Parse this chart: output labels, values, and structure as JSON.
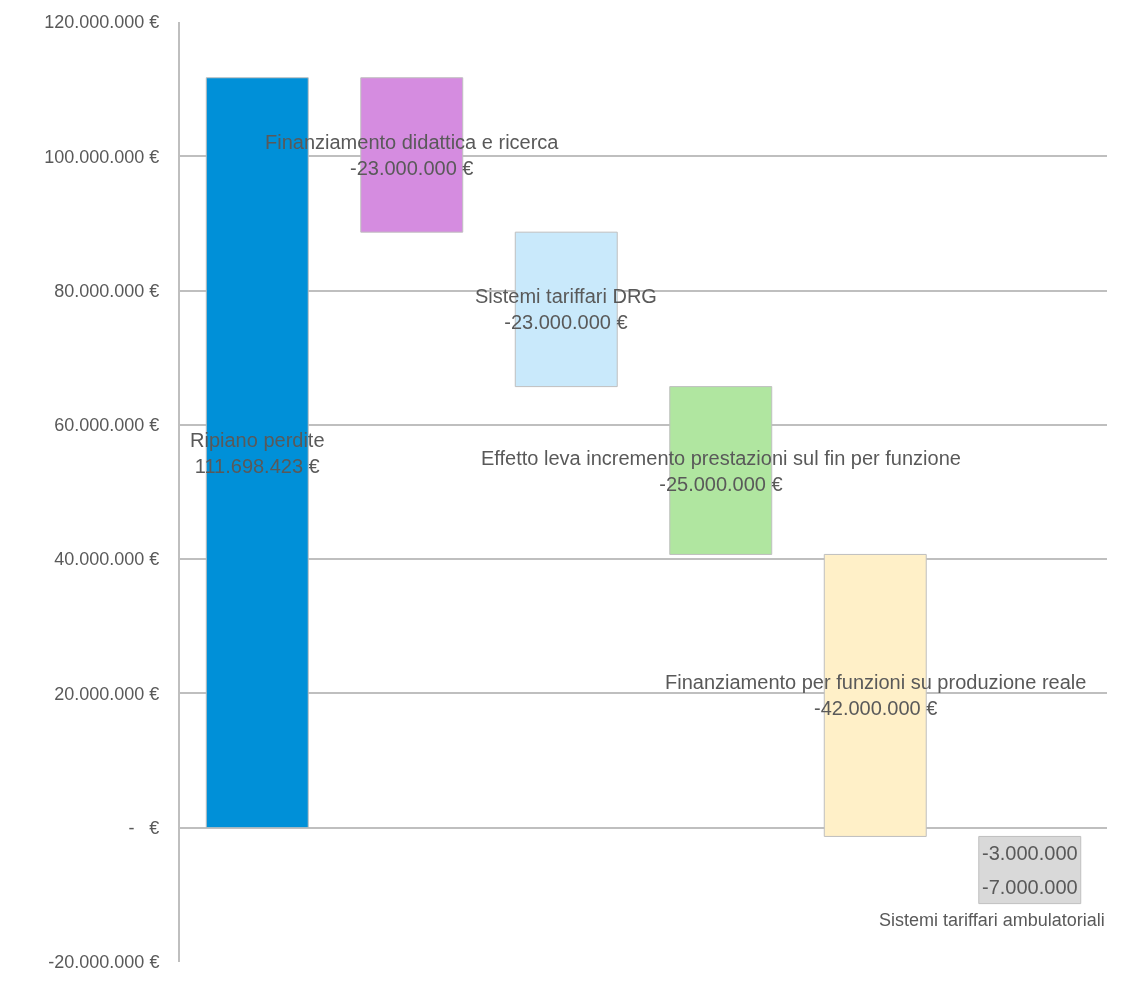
{
  "chart_data": {
    "type": "bar",
    "categories": [
      "Ripiano perdite",
      "Finanziamento didattica e ricerca",
      "Sistemi tariffari DRG",
      "Effetto leva incremento prestazioni sul fin per funzione",
      "Finanziamento per funzioni su produzione reale",
      "Sistemi tariffari ambulatoriali"
    ],
    "values": [
      111698423,
      -23000000,
      -23000000,
      -25000000,
      -42000000,
      -10000000
    ],
    "base": [
      0,
      111698423,
      88698423,
      65698423,
      40698423,
      -1301577
    ],
    "colors": [
      "#0090d8",
      "#d58ce0",
      "#c9e9fb",
      "#b0e6a0",
      "#fff0c8",
      "#d9d9d9"
    ],
    "value_labels": [
      "111.698.423 €",
      "-23.000.000 €",
      "-23.000.000 €",
      "-25.000.000 €",
      "-42.000.000 €",
      null
    ],
    "annotations": [
      "-3.000.000",
      "-7.000.000"
    ],
    "ylim": [
      -20000000,
      120000000
    ],
    "yticks": [
      {
        "value": -20000000,
        "label": "-20.000.000 €"
      },
      {
        "value": 0,
        "label": "-   €"
      },
      {
        "value": 20000000,
        "label": "20.000.000 €"
      },
      {
        "value": 40000000,
        "label": "40.000.000 €"
      },
      {
        "value": 60000000,
        "label": "60.000.000 €"
      },
      {
        "value": 80000000,
        "label": "80.000.000 €"
      },
      {
        "value": 100000000,
        "label": "100.000.000 €"
      },
      {
        "value": 120000000,
        "label": "120.000.000 €"
      }
    ],
    "grid": "y",
    "tick_labels": "y",
    "legend": false
  }
}
